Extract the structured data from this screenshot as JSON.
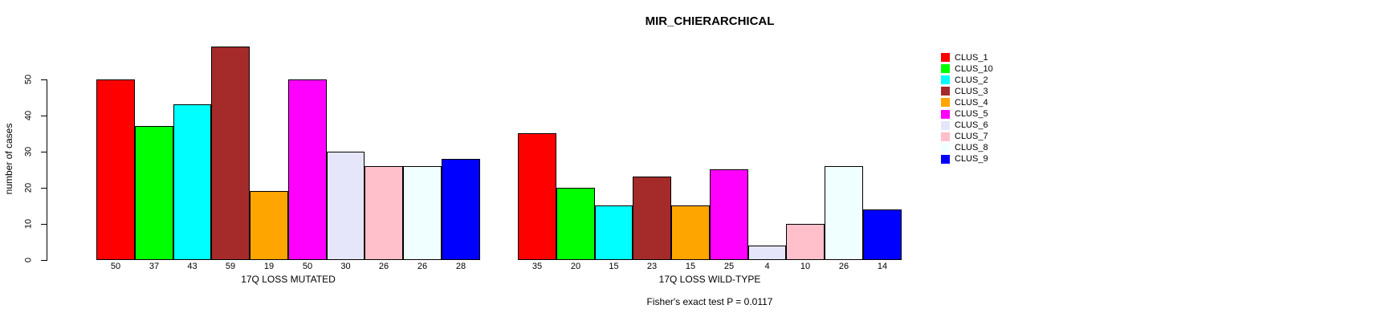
{
  "chart_data": {
    "type": "bar",
    "title": "MIR_CHIERARCHICAL",
    "ylabel": "number of cases",
    "ylim": [
      0,
      59
    ],
    "yticks": [
      0,
      10,
      20,
      30,
      40,
      50
    ],
    "grid": false,
    "legend_position": "right",
    "categories": [
      "CLUS_1",
      "CLUS_10",
      "CLUS_2",
      "CLUS_3",
      "CLUS_4",
      "CLUS_5",
      "CLUS_6",
      "CLUS_7",
      "CLUS_8",
      "CLUS_9"
    ],
    "colors": [
      "#FF0000",
      "#00FF00",
      "#00FFFF",
      "#A52A2A",
      "#FFA500",
      "#FF00FF",
      "#E6E6FA",
      "#FFC0CB",
      "#F0FFFF",
      "#0000FF"
    ],
    "series": [
      {
        "name": "17Q LOSS MUTATED",
        "values": [
          50,
          37,
          43,
          59,
          19,
          50,
          30,
          26,
          26,
          28
        ]
      },
      {
        "name": "17Q LOSS WILD-TYPE",
        "values": [
          35,
          20,
          15,
          23,
          15,
          25,
          4,
          10,
          26,
          14
        ]
      }
    ],
    "annotation": "Fisher's exact test P = 0.0117"
  }
}
